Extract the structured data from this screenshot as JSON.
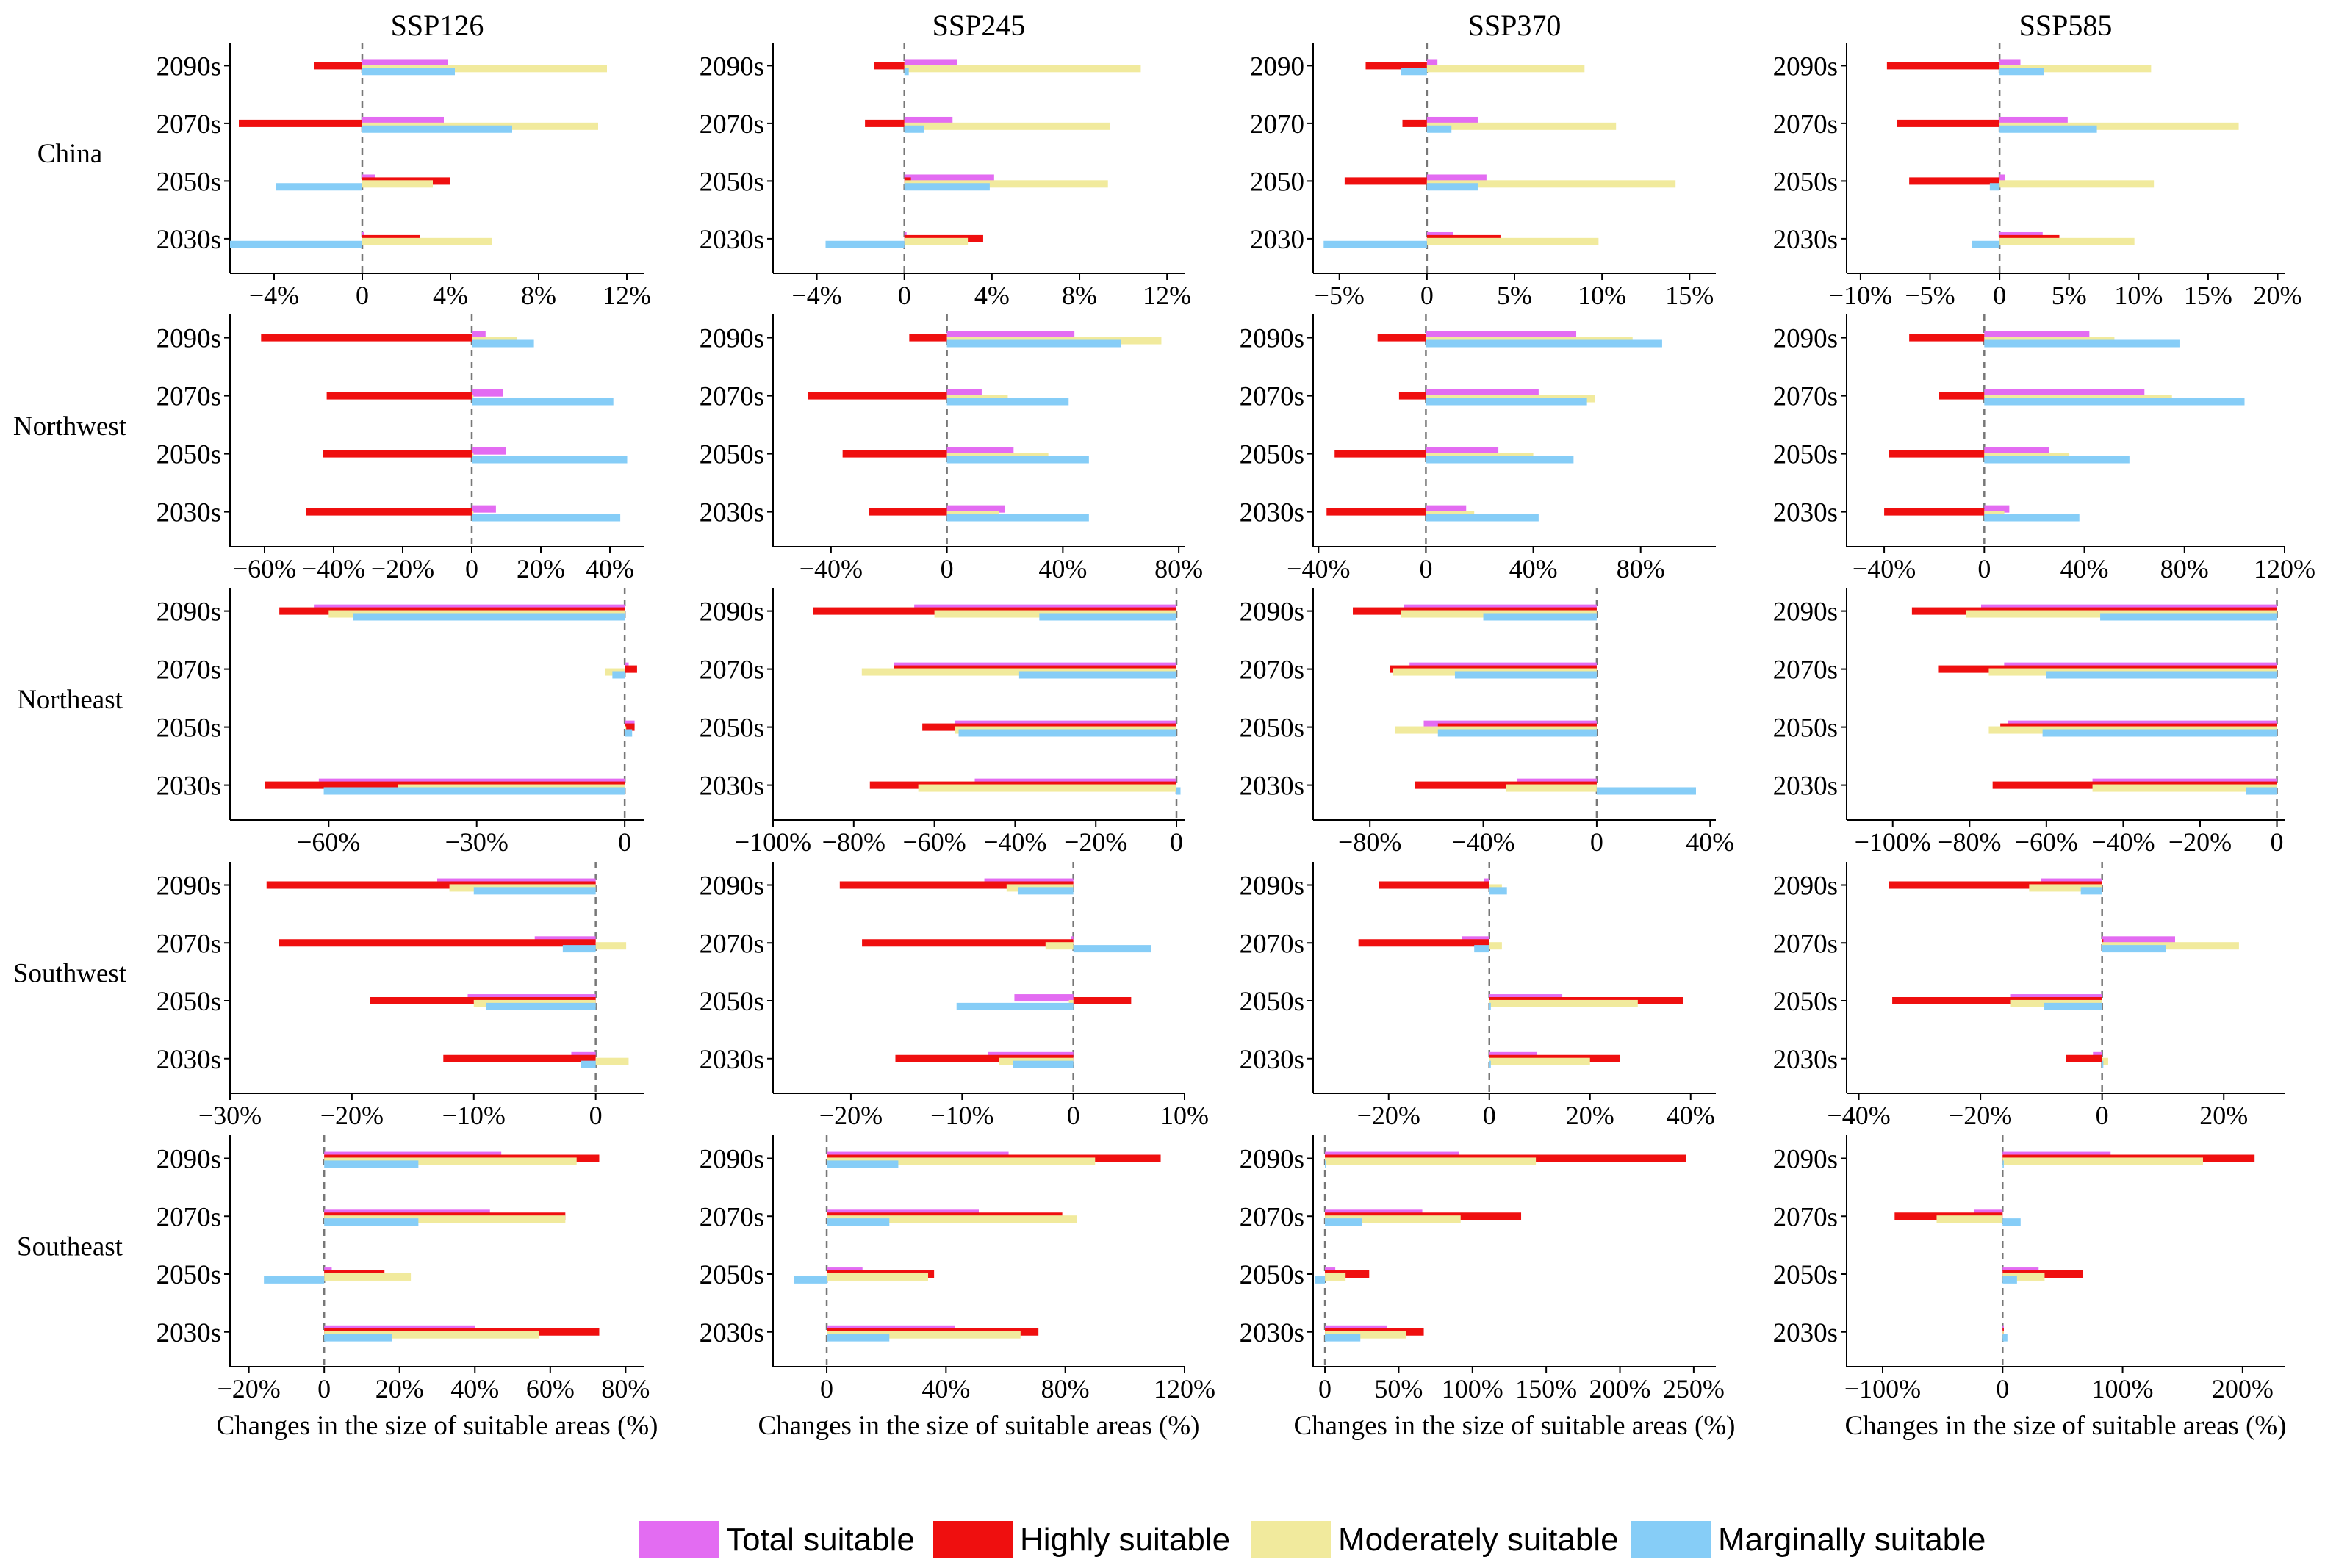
{
  "chart_data": {
    "type": "bar",
    "orientation": "horizontal",
    "scenarios": [
      "SSP126",
      "SSP245",
      "SSP370",
      "SSP585"
    ],
    "regions": [
      "China",
      "Northwest",
      "Northeast",
      "Southwest",
      "Southeast"
    ],
    "xlabel": "Changes in the size of suitable areas (%)",
    "colors": {
      "Total suitable": "#e36cf2",
      "Highly suitable": "#ef0f0f",
      "Moderately suitable": "#f1ea9d",
      "Marginally suitable": "#86cdf7"
    },
    "legend": {
      "position": "bottom",
      "entries": [
        "Total suitable",
        "Highly suitable",
        "Moderately suitable",
        "Marginally suitable"
      ]
    },
    "series_order": [
      "Total suitable",
      "Highly suitable",
      "Moderately suitable",
      "Marginally suitable"
    ],
    "panels": [
      {
        "region": "China",
        "scenario": "SSP126",
        "xlim": [
          -6,
          12.8
        ],
        "ticks": [
          -4,
          0,
          4,
          8,
          12
        ],
        "tick_labels": [
          "−4%",
          "0",
          "4%",
          "8%",
          "12%"
        ],
        "categories": [
          "2090s",
          "2070s",
          "2050s",
          "2030s"
        ],
        "values": {
          "2090s": [
            3.9,
            -2.2,
            11.1,
            4.2
          ],
          "2070s": [
            3.7,
            -5.6,
            10.7,
            6.8
          ],
          "2050s": [
            0.6,
            4.0,
            3.2,
            -3.9
          ],
          "2030s": [
            0.1,
            2.6,
            5.9,
            -6.0
          ]
        }
      },
      {
        "region": "China",
        "scenario": "SSP245",
        "xlim": [
          -6,
          12.8
        ],
        "ticks": [
          -4,
          0,
          4,
          8,
          12
        ],
        "tick_labels": [
          "−4%",
          "0",
          "4%",
          "8%",
          "12%"
        ],
        "categories": [
          "2090s",
          "2070s",
          "2050s",
          "2030s"
        ],
        "values": {
          "2090s": [
            2.4,
            -1.4,
            10.8,
            0.2
          ],
          "2070s": [
            2.2,
            -1.8,
            9.4,
            0.9
          ],
          "2050s": [
            4.1,
            0.3,
            9.3,
            3.9
          ],
          "2030s": [
            0.1,
            3.6,
            2.9,
            -3.6
          ]
        }
      },
      {
        "region": "China",
        "scenario": "SSP370",
        "xlim": [
          -6.5,
          16.5
        ],
        "ticks": [
          -5,
          0,
          5,
          10,
          15
        ],
        "tick_labels": [
          "−5%",
          "0",
          "5%",
          "10%",
          "15%"
        ],
        "categories": [
          "2090",
          "2070",
          "2050",
          "2030"
        ],
        "values": {
          "2090": [
            0.6,
            -3.5,
            9.0,
            -1.5
          ],
          "2070": [
            2.9,
            -1.4,
            10.8,
            1.4
          ],
          "2050": [
            3.4,
            -4.7,
            14.2,
            2.9
          ],
          "2030": [
            1.5,
            4.2,
            9.8,
            -5.9
          ]
        }
      },
      {
        "region": "China",
        "scenario": "SSP585",
        "xlim": [
          -11,
          20.5
        ],
        "ticks": [
          -10,
          -5,
          0,
          5,
          10,
          15,
          20
        ],
        "tick_labels": [
          "−10%",
          "−5%",
          "0",
          "5%",
          "10%",
          "15%",
          "20%"
        ],
        "categories": [
          "2090s",
          "2070s",
          "2050s",
          "2030s"
        ],
        "values": {
          "2090s": [
            1.5,
            -8.1,
            10.9,
            3.2
          ],
          "2070s": [
            4.9,
            -7.4,
            17.2,
            7.0
          ],
          "2050s": [
            0.4,
            -6.5,
            11.1,
            -0.7
          ],
          "2030s": [
            3.1,
            4.3,
            9.7,
            -2.0
          ]
        }
      },
      {
        "region": "Northwest",
        "scenario": "SSP126",
        "xlim": [
          -70,
          50
        ],
        "ticks": [
          -60,
          -40,
          -20,
          0,
          20,
          40
        ],
        "tick_labels": [
          "−60%",
          "−40%",
          "−20%",
          "0",
          "20%",
          "40%"
        ],
        "categories": [
          "2090s",
          "2070s",
          "2050s",
          "2030s"
        ],
        "values": {
          "2090s": [
            4,
            -61,
            13,
            18
          ],
          "2070s": [
            9,
            -42,
            0.5,
            41
          ],
          "2050s": [
            10,
            -43,
            0.5,
            45
          ],
          "2030s": [
            7,
            -48,
            0.5,
            43
          ]
        }
      },
      {
        "region": "Northwest",
        "scenario": "SSP245",
        "xlim": [
          -60,
          82
        ],
        "ticks": [
          -40,
          0,
          40,
          80
        ],
        "tick_labels": [
          "−40%",
          "0",
          "40%",
          "80%"
        ],
        "categories": [
          "2090s",
          "2070s",
          "2050s",
          "2030s"
        ],
        "values": {
          "2090s": [
            44,
            -13,
            74,
            60
          ],
          "2070s": [
            12,
            -48,
            21,
            42
          ],
          "2050s": [
            23,
            -36,
            35,
            49
          ],
          "2030s": [
            20,
            -27,
            18,
            49
          ]
        }
      },
      {
        "region": "Northwest",
        "scenario": "SSP370",
        "xlim": [
          -42,
          108
        ],
        "ticks": [
          -40,
          0,
          40,
          80
        ],
        "tick_labels": [
          "−40%",
          "0",
          "40%",
          "80%"
        ],
        "categories": [
          "2090s",
          "2070s",
          "2050s",
          "2030s"
        ],
        "values": {
          "2090s": [
            56,
            -18,
            77,
            88
          ],
          "2070s": [
            42,
            -10,
            63,
            60
          ],
          "2050s": [
            27,
            -34,
            40,
            55
          ],
          "2030s": [
            15,
            -37,
            18,
            42
          ]
        }
      },
      {
        "region": "Northwest",
        "scenario": "SSP585",
        "xlim": [
          -55,
          120
        ],
        "ticks": [
          -40,
          0,
          40,
          80,
          120
        ],
        "tick_labels": [
          "−40%",
          "0",
          "40%",
          "80%",
          "120%"
        ],
        "categories": [
          "2090s",
          "2070s",
          "2050s",
          "2030s"
        ],
        "values": {
          "2090s": [
            42,
            -30,
            52,
            78
          ],
          "2070s": [
            64,
            -18,
            75,
            104
          ],
          "2050s": [
            26,
            -38,
            34,
            58
          ],
          "2030s": [
            10,
            -40,
            8,
            38
          ]
        }
      },
      {
        "region": "Northeast",
        "scenario": "SSP126",
        "xlim": [
          -80,
          4
        ],
        "ticks": [
          -60,
          -30,
          0
        ],
        "tick_labels": [
          "−60%",
          "−30%",
          "0"
        ],
        "categories": [
          "2090s",
          "2070s",
          "2050s",
          "2030s"
        ],
        "values": {
          "2090s": [
            -63,
            -70,
            -60,
            -55
          ],
          "2070s": [
            0.8,
            2.5,
            -4,
            -2.5
          ],
          "2050s": [
            2,
            2,
            0.3,
            1.5
          ],
          "2030s": [
            -62,
            -73,
            -46,
            -61
          ]
        }
      },
      {
        "region": "Northeast",
        "scenario": "SSP245",
        "xlim": [
          -100,
          2
        ],
        "ticks": [
          -100,
          -80,
          -60,
          -40,
          -20,
          0
        ],
        "tick_labels": [
          "−100%",
          "−80%",
          "−60%",
          "−40%",
          "−20%",
          "0"
        ],
        "categories": [
          "2090s",
          "2070s",
          "2050s",
          "2030s"
        ],
        "values": {
          "2090s": [
            -65,
            -90,
            -60,
            -34
          ],
          "2070s": [
            -70,
            -70,
            -78,
            -39
          ],
          "2050s": [
            -55,
            -63,
            -55,
            -54
          ],
          "2030s": [
            -50,
            -76,
            -64,
            1
          ]
        }
      },
      {
        "region": "Northeast",
        "scenario": "SSP370",
        "xlim": [
          -100,
          42
        ],
        "ticks": [
          -80,
          -40,
          0,
          40
        ],
        "tick_labels": [
          "−80%",
          "−40%",
          "0",
          "40%"
        ],
        "categories": [
          "2090s",
          "2070s",
          "2050s",
          "2030s"
        ],
        "values": {
          "2090s": [
            -68,
            -86,
            -69,
            -40
          ],
          "2070s": [
            -66,
            -73,
            -72,
            -50
          ],
          "2050s": [
            -61,
            -56,
            -71,
            -56
          ],
          "2030s": [
            -28,
            -64,
            -32,
            35
          ]
        }
      },
      {
        "region": "Northeast",
        "scenario": "SSP585",
        "xlim": [
          -112,
          2
        ],
        "ticks": [
          -100,
          -80,
          -60,
          -40,
          -20,
          0
        ],
        "tick_labels": [
          "−100%",
          "−80%",
          "−60%",
          "−40%",
          "−20%",
          "0"
        ],
        "categories": [
          "2090s",
          "2070s",
          "2050s",
          "2030s"
        ],
        "values": {
          "2090s": [
            -77,
            -95,
            -81,
            -46
          ],
          "2070s": [
            -71,
            -88,
            -75,
            -60
          ],
          "2050s": [
            -70,
            -72,
            -75,
            -61
          ],
          "2030s": [
            -48,
            -74,
            -48,
            -8
          ]
        }
      },
      {
        "region": "Southwest",
        "scenario": "SSP126",
        "xlim": [
          -30,
          4
        ],
        "ticks": [
          -30,
          -20,
          -10,
          0
        ],
        "tick_labels": [
          "−30%",
          "−20%",
          "−10%",
          "0"
        ],
        "categories": [
          "2090s",
          "2070s",
          "2050s",
          "2030s"
        ],
        "values": {
          "2090s": [
            -13,
            -27,
            -12,
            -10
          ],
          "2070s": [
            -5,
            -26,
            2.5,
            -2.7
          ],
          "2050s": [
            -10.5,
            -18.5,
            -10,
            -9
          ],
          "2030s": [
            -2,
            -12.5,
            2.7,
            -1.2
          ]
        }
      },
      {
        "region": "Southwest",
        "scenario": "SSP245",
        "xlim": [
          -27,
          10
        ],
        "ticks": [
          -20,
          -10,
          0,
          10
        ],
        "tick_labels": [
          "−20%",
          "−10%",
          "0",
          "10%"
        ],
        "categories": [
          "2090s",
          "2070s",
          "2050s",
          "2030s"
        ],
        "values": {
          "2090s": [
            -8,
            -21,
            -6,
            -5
          ],
          "2070s": [
            -0.2,
            -19,
            -2.5,
            7
          ],
          "2050s": [
            -5.3,
            5.2,
            -0.4,
            -10.5
          ],
          "2030s": [
            -7.7,
            -16,
            -6.7,
            -5.4
          ]
        }
      },
      {
        "region": "Southwest",
        "scenario": "SSP370",
        "xlim": [
          -35,
          45
        ],
        "ticks": [
          -20,
          0,
          20,
          40
        ],
        "tick_labels": [
          "−20%",
          "0",
          "20%",
          "40%"
        ],
        "categories": [
          "2090s",
          "2070s",
          "2050s",
          "2030s"
        ],
        "values": {
          "2090s": [
            -1,
            -22,
            2.5,
            3.5
          ],
          "2070s": [
            -5.5,
            -26,
            2.5,
            -3
          ],
          "2050s": [
            14.5,
            38.5,
            29.5,
            0.3
          ],
          "2030s": [
            9.5,
            26,
            20,
            0.3
          ]
        }
      },
      {
        "region": "Southwest",
        "scenario": "SSP585",
        "xlim": [
          -42,
          30
        ],
        "ticks": [
          -40,
          -20,
          0,
          20
        ],
        "tick_labels": [
          "−40%",
          "−20%",
          "0",
          "20%"
        ],
        "categories": [
          "2090s",
          "2070s",
          "2050s",
          "2030s"
        ],
        "values": {
          "2090s": [
            -10,
            -35,
            -12,
            -3.5
          ],
          "2070s": [
            12,
            0.2,
            22.5,
            10.5
          ],
          "2050s": [
            -15,
            -34.5,
            -15,
            -9.5
          ],
          "2030s": [
            -1.5,
            -6,
            1,
            0.2
          ]
        }
      },
      {
        "region": "Southeast",
        "scenario": "SSP126",
        "xlim": [
          -25,
          85
        ],
        "ticks": [
          -20,
          0,
          20,
          40,
          60,
          80
        ],
        "tick_labels": [
          "−20%",
          "0",
          "20%",
          "40%",
          "60%",
          "80%"
        ],
        "categories": [
          "2090s",
          "2070s",
          "2050s",
          "2030s"
        ],
        "values": {
          "2090s": [
            47,
            73,
            67,
            25
          ],
          "2070s": [
            44,
            64,
            64,
            25
          ],
          "2050s": [
            2,
            16,
            23,
            -16
          ],
          "2030s": [
            40,
            73,
            57,
            18
          ]
        }
      },
      {
        "region": "Southeast",
        "scenario": "SSP245",
        "xlim": [
          -18,
          120
        ],
        "ticks": [
          0,
          40,
          80,
          120
        ],
        "tick_labels": [
          "0",
          "40%",
          "80%",
          "120%"
        ],
        "categories": [
          "2090s",
          "2070s",
          "2050s",
          "2030s"
        ],
        "values": {
          "2090s": [
            61,
            112,
            90,
            24
          ],
          "2070s": [
            51,
            79,
            84,
            21
          ],
          "2050s": [
            12,
            36,
            34,
            -11
          ],
          "2030s": [
            43,
            71,
            65,
            21
          ]
        }
      },
      {
        "region": "Southeast",
        "scenario": "SSP370",
        "xlim": [
          -8,
          265
        ],
        "ticks": [
          0,
          50,
          100,
          150,
          200,
          250
        ],
        "tick_labels": [
          "0",
          "50%",
          "100%",
          "150%",
          "200%",
          "250%"
        ],
        "categories": [
          "2090s",
          "2070s",
          "2050s",
          "2030s"
        ],
        "values": {
          "2090s": [
            91,
            245,
            143,
            0.5
          ],
          "2070s": [
            66,
            133,
            92,
            25
          ],
          "2050s": [
            7,
            30,
            14,
            -7
          ],
          "2030s": [
            42,
            67,
            55,
            24
          ]
        }
      },
      {
        "region": "Southeast",
        "scenario": "SSP585",
        "xlim": [
          -130,
          235
        ],
        "ticks": [
          -100,
          0,
          100,
          200
        ],
        "tick_labels": [
          "−100%",
          "0",
          "100%",
          "200%"
        ],
        "categories": [
          "2090s",
          "2070s",
          "2050s",
          "2030s"
        ],
        "values": {
          "2090s": [
            90,
            210,
            167,
            1
          ],
          "2070s": [
            -24,
            -90,
            -55,
            15
          ],
          "2050s": [
            30,
            67,
            35,
            12
          ],
          "2030s": [
            1,
            1,
            1,
            4
          ]
        }
      }
    ]
  }
}
